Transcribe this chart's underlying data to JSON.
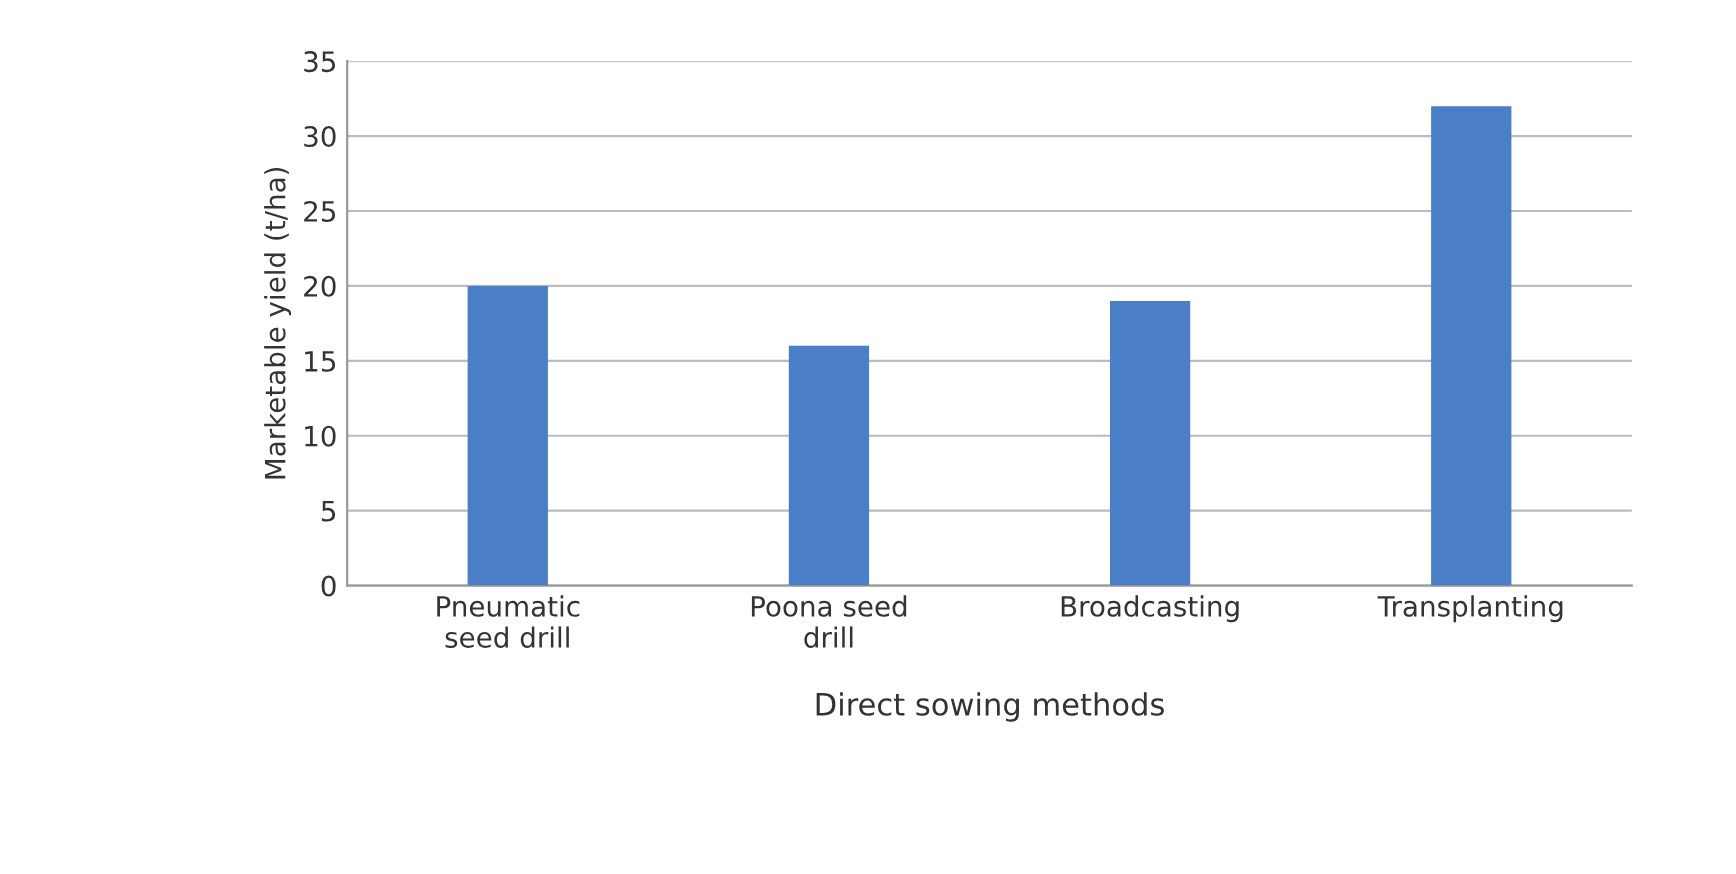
{
  "chart_data": {
    "type": "bar",
    "xlabel": "Direct sowing methods",
    "ylabel": "Marketable yield (t/ha)",
    "categories": [
      "Pneumatic\nseed drill",
      "Poona seed\ndrill",
      "Broadcasting",
      "Transplanting"
    ],
    "values": [
      20,
      16,
      19,
      32
    ],
    "color": "#4a7ec6",
    "ylim": [
      0,
      35
    ],
    "yticks": [
      0,
      5,
      10,
      15,
      20,
      25,
      30,
      35
    ],
    "grid": "y"
  }
}
